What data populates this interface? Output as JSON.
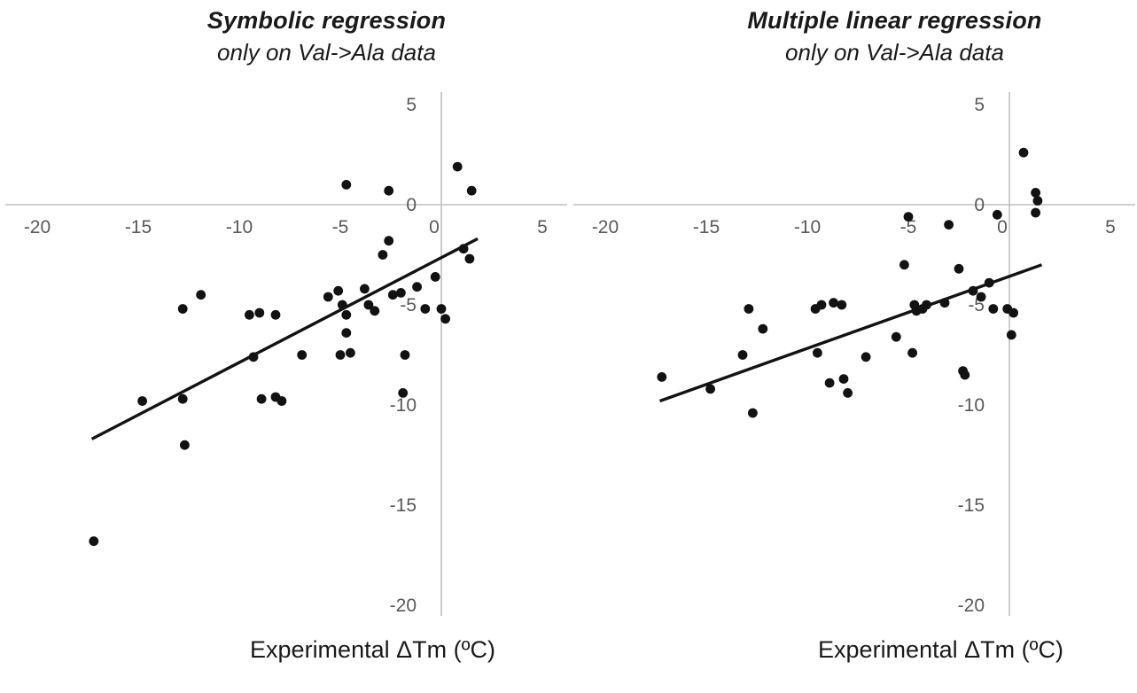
{
  "page": {
    "background": "#ffffff"
  },
  "chart_data": [
    {
      "type": "scatter",
      "title": "Symbolic regression",
      "subtitle": "only on Val->Ala data",
      "xlabel": "Experimental ΔTm (ºC)",
      "ylabel": "",
      "xlim": [
        -20,
        5
      ],
      "ylim": [
        -20,
        5
      ],
      "x_ticks": [
        -20,
        -15,
        -10,
        -5,
        0,
        5
      ],
      "y_ticks": [
        5,
        0,
        -5,
        -10,
        -15,
        -20
      ],
      "grid": false,
      "legend": "none",
      "axis_color": "#bfbfbf",
      "tick_color": "#595959",
      "point_color": "#121212",
      "line_color": "#121212",
      "points": [
        [
          -17.2,
          -16.8
        ],
        [
          -14.8,
          -9.8
        ],
        [
          -12.8,
          -9.7
        ],
        [
          -12.7,
          -12.0
        ],
        [
          -12.8,
          -5.2
        ],
        [
          -11.9,
          -4.5
        ],
        [
          -9.5,
          -5.5
        ],
        [
          -9.0,
          -5.4
        ],
        [
          -8.2,
          -5.5
        ],
        [
          -9.3,
          -7.6
        ],
        [
          -8.9,
          -9.7
        ],
        [
          -8.2,
          -9.6
        ],
        [
          -7.9,
          -9.8
        ],
        [
          -6.9,
          -7.5
        ],
        [
          -5.6,
          -4.6
        ],
        [
          -5.1,
          -4.3
        ],
        [
          -4.9,
          -5.0
        ],
        [
          -4.7,
          -5.5
        ],
        [
          -4.7,
          -6.4
        ],
        [
          -4.5,
          -7.4
        ],
        [
          -5.0,
          -7.5
        ],
        [
          -4.7,
          1.0
        ],
        [
          -3.8,
          -4.2
        ],
        [
          -3.6,
          -5.0
        ],
        [
          -3.3,
          -5.3
        ],
        [
          -2.9,
          -2.5
        ],
        [
          -2.6,
          0.7
        ],
        [
          -2.6,
          -1.8
        ],
        [
          -2.4,
          -4.5
        ],
        [
          -2.0,
          -4.4
        ],
        [
          -1.8,
          -7.5
        ],
        [
          -1.9,
          -9.4
        ],
        [
          -1.2,
          -4.1
        ],
        [
          -0.8,
          -5.2
        ],
        [
          -0.3,
          -3.6
        ],
        [
          0.0,
          -5.2
        ],
        [
          0.2,
          -5.7
        ],
        [
          0.8,
          1.9
        ],
        [
          1.1,
          -2.2
        ],
        [
          1.4,
          -2.7
        ],
        [
          1.5,
          0.7
        ]
      ],
      "trendline": [
        [
          -17.3,
          -11.7
        ],
        [
          1.8,
          -1.7
        ]
      ]
    },
    {
      "type": "scatter",
      "title": "Multiple linear regression",
      "subtitle": "only on Val->Ala data",
      "xlabel": "Experimental ΔTm (ºC)",
      "ylabel": "",
      "xlim": [
        -20,
        5
      ],
      "ylim": [
        -20,
        5
      ],
      "x_ticks": [
        -20,
        -15,
        -10,
        -5,
        0,
        5
      ],
      "y_ticks": [
        5,
        0,
        -5,
        -10,
        -15,
        -20
      ],
      "grid": false,
      "legend": "none",
      "axis_color": "#bfbfbf",
      "tick_color": "#595959",
      "point_color": "#121212",
      "line_color": "#121212",
      "points": [
        [
          -17.2,
          -8.6
        ],
        [
          -14.8,
          -9.2
        ],
        [
          -13.2,
          -7.5
        ],
        [
          -12.9,
          -5.2
        ],
        [
          -12.7,
          -10.4
        ],
        [
          -12.2,
          -6.2
        ],
        [
          -9.6,
          -5.2
        ],
        [
          -9.3,
          -5.0
        ],
        [
          -9.5,
          -7.4
        ],
        [
          -8.7,
          -4.9
        ],
        [
          -8.3,
          -5.0
        ],
        [
          -8.9,
          -8.9
        ],
        [
          -8.2,
          -8.7
        ],
        [
          -8.0,
          -9.4
        ],
        [
          -7.1,
          -7.6
        ],
        [
          -5.6,
          -6.6
        ],
        [
          -5.2,
          -3.0
        ],
        [
          -5.0,
          -0.6
        ],
        [
          -4.7,
          -5.0
        ],
        [
          -4.6,
          -5.3
        ],
        [
          -4.8,
          -7.4
        ],
        [
          -4.3,
          -5.2
        ],
        [
          -4.1,
          -5.0
        ],
        [
          -3.2,
          -4.9
        ],
        [
          -3.0,
          -1.0
        ],
        [
          -2.5,
          -3.2
        ],
        [
          -2.3,
          -8.3
        ],
        [
          -2.2,
          -8.5
        ],
        [
          -1.8,
          -4.3
        ],
        [
          -1.4,
          -4.6
        ],
        [
          -1.0,
          -3.9
        ],
        [
          -0.8,
          -5.2
        ],
        [
          -0.6,
          -0.5
        ],
        [
          -0.1,
          -5.2
        ],
        [
          0.2,
          -5.4
        ],
        [
          0.1,
          -6.5
        ],
        [
          0.7,
          2.6
        ],
        [
          1.3,
          0.6
        ],
        [
          1.4,
          0.2
        ],
        [
          1.3,
          -0.4
        ]
      ],
      "trendline": [
        [
          -17.3,
          -9.8
        ],
        [
          1.6,
          -3.0
        ]
      ]
    }
  ]
}
